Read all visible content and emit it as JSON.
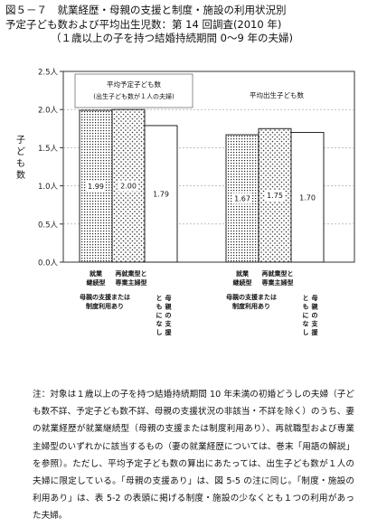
{
  "title": {
    "line1": "図５－７　就業経歴・母親の支援と制度・施設の利用状況別",
    "line2": "予定子ども数および平均出生児数：第 14 回調査(2010 年)",
    "line3": "（１歳以上の子を持つ結婚持続期間 0～9 年の夫婦)"
  },
  "chart_data": {
    "type": "bar",
    "ylabel": "子ども数",
    "ylim": [
      0,
      2.5
    ],
    "yticks": [
      "0.0人",
      "0.5人",
      "1.0人",
      "1.5人",
      "2.0人",
      "2.5人"
    ],
    "categories": [
      "就業継続型・母親の支援または制度利用あり",
      "再就業型と専業主婦型・母親の支援または制度利用あり",
      "再就業型と専業主婦型・母親の支援ともになし"
    ],
    "series": [
      {
        "name": "平均予定子ども数",
        "values": [
          1.99,
          2.0,
          1.79
        ]
      },
      {
        "name": "平均出生子ども数",
        "values": [
          1.67,
          1.75,
          1.7
        ]
      }
    ],
    "data_labels": [
      [
        "1.99",
        "2.00",
        "1.79"
      ],
      [
        "1.67",
        "1.75",
        "1.70"
      ]
    ],
    "group_titles": [
      "平均予定子ども数",
      "平均出生子ども数"
    ],
    "group_note": "(出生子ども数が１人の夫婦)",
    "xlabels": {
      "top": [
        [
          "就業",
          "継続型"
        ],
        [
          "再就業型と",
          "専業主婦型"
        ],
        [
          "就業",
          "継続型"
        ],
        [
          "再就業型と",
          "専業主婦型"
        ]
      ],
      "support": [
        "母親の支援または",
        "制度利用あり"
      ],
      "none": [
        "母親の支援",
        "ともになし"
      ]
    },
    "fills": [
      "hatch",
      "dots",
      "white"
    ]
  },
  "note": "注：対象は１歳以上の子を持つ結婚持続期間 10 年未満の初婚どうしの夫婦（子ども数不詳、予定子ども数不詳、母親の支援状況の非該当・不詳を除く）のうち、妻の就業経歴が就業継続型（母親の支援または制度利用あり）、再就職型および専業主婦型のいずれかに該当するもの（妻の就業経歴については、巻末「用語の解説」を参照）。ただし、平均予定子ども数の算出にあたっては、出生子ども数が１人の夫婦に限定している。「母親の支援あり」は、図 5-5 の注に同じ。「制度・施設の利用あり」は、表 5-2 の表頭に掲げる制度・施設の少なくとも１つの利用があった夫婦。"
}
